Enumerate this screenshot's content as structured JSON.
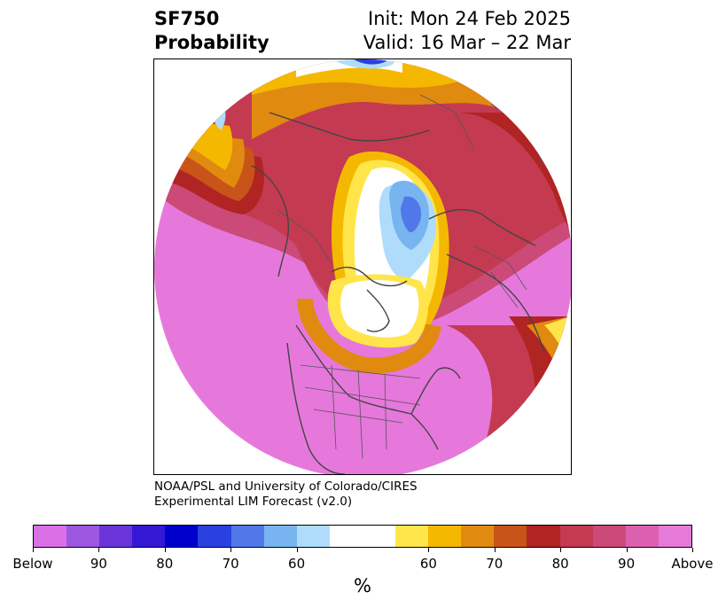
{
  "title": {
    "left_line1": "SF750",
    "left_line2": "Probability",
    "right_line1": "Init: Mon 24 Feb 2025",
    "right_line2": "Valid: 16 Mar – 22 Mar"
  },
  "credit": {
    "line1": "NOAA/PSL and University of Colorado/CIRES",
    "line2": "Experimental LIM Forecast (v2.0)"
  },
  "colorbar": {
    "label": "%",
    "colors": [
      "#da70e6",
      "#9d56e0",
      "#6a35d8",
      "#3418d4",
      "#0000cc",
      "#2a40e0",
      "#5078e8",
      "#78b4f0",
      "#b0dcfc",
      "#ffffff",
      "#ffffff",
      "#ffe54a",
      "#f5b800",
      "#e08a10",
      "#c8541a",
      "#b02424",
      "#c43a50",
      "#cc4a78",
      "#dc60b0",
      "#e67ad8"
    ],
    "ticks": [
      "Below",
      "90",
      "80",
      "70",
      "60",
      "60",
      "70",
      "80",
      "90",
      "Above"
    ]
  },
  "map": {
    "projection": "north polar stereographic",
    "description_colors": {
      "above_high": "#e678dc",
      "above_mid": "#c83c5a",
      "dark_red": "#b02424",
      "orange": "#e08a10",
      "yellow": "#f5b800",
      "light_yellow": "#ffe54a",
      "light_blue": "#b0dcfc",
      "blue": "#5078e8",
      "dark_blue": "#2a40e0",
      "coastline": "#444444"
    }
  }
}
